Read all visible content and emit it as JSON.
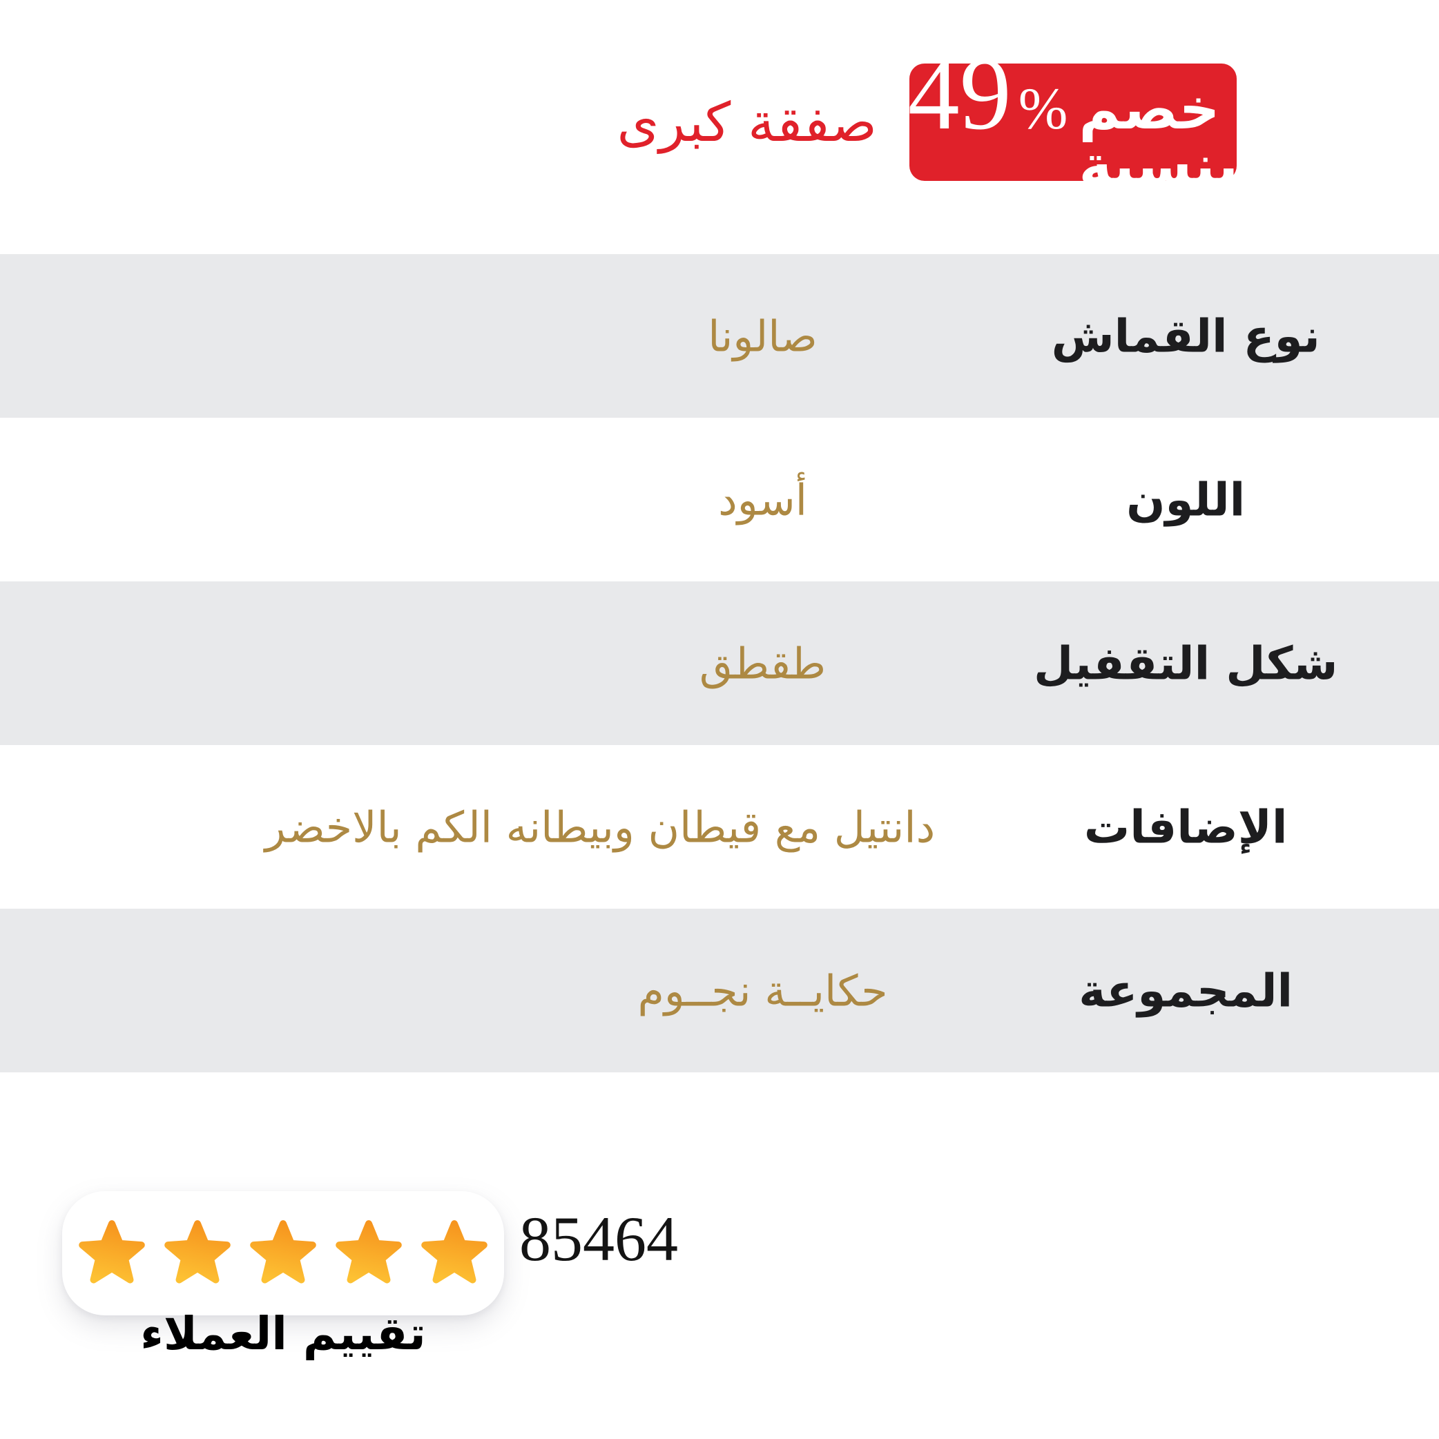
{
  "discount_badge": {
    "label": "خصم بنسبة",
    "value": "49",
    "percent_sign": "%",
    "bg_color": "#E0212A",
    "text_color": "#FFFFFF"
  },
  "deal_text": {
    "label": "صفقة كبرى",
    "color": "#E0212A"
  },
  "specs_table": {
    "row_alt_color": "#E8E9EB",
    "label_color": "#1D1D1F",
    "value_color": "#AD8943",
    "rows": [
      {
        "label": "نوع القماش",
        "value": "صالونا"
      },
      {
        "label": "اللون",
        "value": "أسود"
      },
      {
        "label": "شكل التقفيل",
        "value": "طقطق"
      },
      {
        "label": "الإضافات",
        "value": "دانتيل مع قيطان وبيطانه الكم بالاخضر"
      },
      {
        "label": "المجموعة",
        "value": "حكايــة نجــوم"
      }
    ]
  },
  "rating": {
    "stars_count": 5,
    "star_color_top": "#F6941E",
    "star_color_bottom": "#FDC133",
    "review_count": "85464",
    "caption": "تقييم العملاء"
  }
}
